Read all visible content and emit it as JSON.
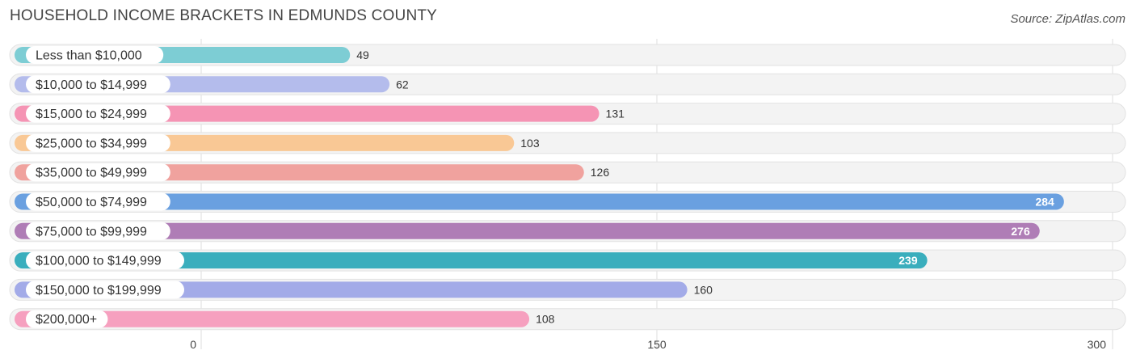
{
  "chart_data": {
    "type": "bar",
    "orientation": "horizontal",
    "title": "HOUSEHOLD INCOME BRACKETS IN EDMUNDS COUNTY",
    "source": "Source: ZipAtlas.com",
    "categories": [
      "Less than $10,000",
      "$10,000 to $14,999",
      "$15,000 to $24,999",
      "$25,000 to $34,999",
      "$35,000 to $49,999",
      "$50,000 to $74,999",
      "$75,000 to $99,999",
      "$100,000 to $149,999",
      "$150,000 to $199,999",
      "$200,000+"
    ],
    "values": [
      49,
      62,
      131,
      103,
      126,
      284,
      276,
      239,
      160,
      108
    ],
    "colors": [
      "#7dcdd4",
      "#b4bcec",
      "#f594b4",
      "#f9c895",
      "#f0a29e",
      "#6aa0e0",
      "#af7db6",
      "#3aaebd",
      "#a3abe8",
      "#f6a0bf"
    ],
    "xlim": [
      0,
      300
    ],
    "xticks": [
      0,
      150,
      300
    ],
    "grid": true
  }
}
